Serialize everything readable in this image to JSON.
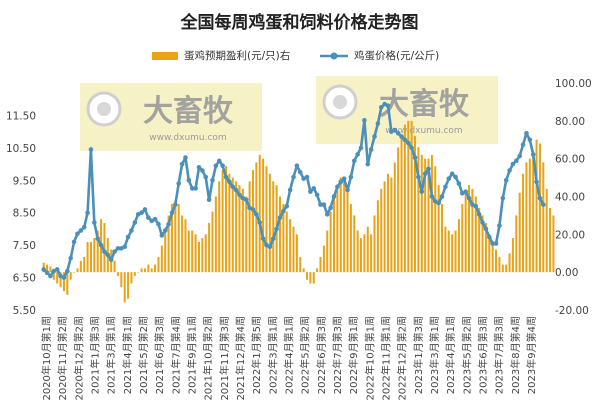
{
  "colors": {
    "bar": "#E8A317",
    "line": "#4A90B8",
    "background": "#ffffff",
    "watermark_box": "#F3EDB2",
    "watermark_text": "#9A9A9A"
  },
  "watermark": {
    "brand": "大畜牧",
    "url": "www.dxumu.com"
  },
  "chart_data": {
    "type": "bar+line",
    "title": "全国每周鸡蛋和饲料价格走势图",
    "legend": [
      "蛋鸡预期盈利(元/只)右",
      "鸡蛋价格(元/公斤)"
    ],
    "legend_position": "top",
    "grid": false,
    "y_left": {
      "ylim": [
        5.5,
        12.5
      ],
      "ticks": [
        "5.50",
        "6.50",
        "7.50",
        "8.50",
        "9.50",
        "10.50",
        "11.50"
      ]
    },
    "y_right": {
      "ylim": [
        -20,
        100
      ],
      "ticks": [
        "-20.00",
        "0.00",
        "20.00",
        "40.00",
        "60.00",
        "80.00",
        "100.00"
      ]
    },
    "x_tick_labels": [
      "2020年10月第1周",
      "2020年11月第2周",
      "2020年12月第2周",
      "2021年1月第3周",
      "2021年3月第1周",
      "2021年4月第1周",
      "2021年5月第2周",
      "2021年6月第3周",
      "2021年7月第4周",
      "2021年9月第1周",
      "2021年10月第2周",
      "2021年11月第3周",
      "2021年12月第4周",
      "2022年1月第5周",
      "2022年3月第1周",
      "2022年4月第1周",
      "2022年5月第2周",
      "2022年6月第3周",
      "2022年7月第3周",
      "2022年9月第1周",
      "2022年10月第1周",
      "2022年11月第1周",
      "2022年12月第2周",
      "2023年1月第3周",
      "2023年3月第1周",
      "2023年4月第1周",
      "2023年5月第2周",
      "2023年6月第3周",
      "2023年7月第3周",
      "2023年8月第4周",
      "2023年9月第4周"
    ],
    "series": [
      {
        "name": "蛋鸡预期盈利(元/只)右",
        "type": "bar",
        "axis": "right",
        "values": [
          5,
          4,
          3,
          -4,
          -6,
          -8,
          -10,
          -12,
          -4,
          0,
          2,
          6,
          8,
          16,
          16,
          18,
          22,
          28,
          26,
          18,
          12,
          6,
          -2,
          -8,
          -16,
          -14,
          -6,
          -2,
          0,
          2,
          2,
          4,
          2,
          4,
          8,
          14,
          22,
          30,
          36,
          38,
          36,
          30,
          28,
          22,
          22,
          20,
          16,
          18,
          20,
          26,
          32,
          40,
          48,
          54,
          56,
          52,
          50,
          48,
          46,
          44,
          40,
          48,
          54,
          58,
          62,
          60,
          56,
          52,
          48,
          46,
          40,
          36,
          32,
          28,
          24,
          20,
          8,
          2,
          -4,
          -6,
          -6,
          2,
          8,
          14,
          22,
          32,
          40,
          46,
          50,
          48,
          44,
          36,
          30,
          22,
          18,
          20,
          24,
          20,
          30,
          38,
          44,
          48,
          52,
          50,
          58,
          66,
          72,
          78,
          80,
          80,
          72,
          66,
          62,
          60,
          60,
          62,
          56,
          46,
          36,
          24,
          22,
          20,
          22,
          28,
          36,
          42,
          46,
          44,
          40,
          34,
          30,
          26,
          20,
          16,
          12,
          8,
          4,
          4,
          10,
          18,
          30,
          42,
          52,
          58,
          60,
          64,
          70,
          68,
          58,
          44,
          34,
          30
        ]
      },
      {
        "name": "鸡蛋价格(元/公斤)",
        "type": "line",
        "axis": "left",
        "values": [
          6.75,
          6.65,
          6.55,
          6.7,
          6.75,
          6.55,
          6.5,
          6.7,
          7.1,
          7.6,
          7.85,
          7.95,
          8.05,
          8.5,
          10.45,
          8.2,
          7.7,
          7.5,
          7.3,
          7.2,
          7.05,
          7.3,
          7.4,
          7.4,
          7.45,
          7.75,
          7.95,
          8.2,
          8.45,
          8.5,
          8.6,
          8.35,
          8.25,
          8.3,
          8.15,
          7.8,
          7.95,
          8.15,
          8.5,
          8.75,
          9.4,
          10.0,
          10.2,
          9.5,
          9.25,
          9.25,
          9.9,
          9.8,
          9.6,
          8.9,
          9.5,
          9.95,
          10.1,
          9.95,
          9.6,
          9.45,
          9.3,
          9.2,
          9.05,
          8.95,
          8.9,
          8.65,
          8.6,
          8.45,
          8.2,
          7.7,
          7.5,
          7.45,
          7.7,
          8.0,
          8.35,
          8.55,
          8.7,
          9.2,
          9.6,
          9.95,
          9.75,
          9.55,
          9.6,
          9.15,
          9.25,
          9.05,
          8.75,
          8.75,
          8.45,
          8.65,
          9.0,
          9.3,
          9.45,
          9.55,
          9.2,
          9.6,
          10.1,
          10.3,
          10.5,
          11.35,
          10.0,
          10.45,
          10.85,
          11.25,
          11.75,
          11.85,
          11.8,
          11.0,
          11.05,
          10.95,
          10.85,
          10.75,
          10.65,
          10.5,
          10.2,
          9.6,
          9.15,
          9.7,
          9.85,
          9.0,
          8.85,
          8.8,
          9.0,
          9.3,
          9.55,
          9.7,
          9.6,
          9.4,
          9.1,
          9.15,
          8.95,
          8.75,
          8.7,
          8.45,
          8.2,
          8.0,
          7.75,
          7.55,
          7.55,
          8.1,
          8.95,
          9.5,
          9.8,
          10.0,
          10.1,
          10.25,
          10.6,
          10.95,
          10.75,
          10.3,
          9.45,
          8.95,
          8.75
        ]
      }
    ]
  }
}
